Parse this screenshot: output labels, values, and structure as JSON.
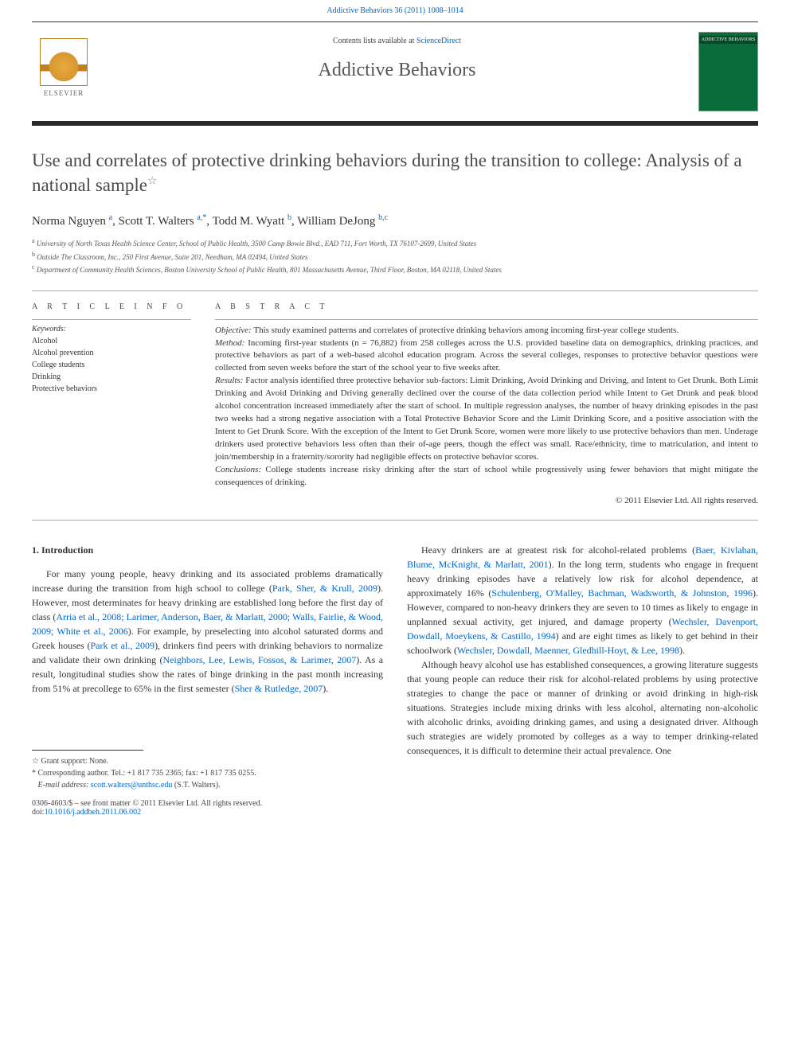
{
  "header": {
    "journal_ref": "Addictive Behaviors 36 (2011) 1008–1014",
    "contents_prefix": "Contents lists available at ",
    "contents_link": "ScienceDirect",
    "journal_name": "Addictive Behaviors",
    "cover_label": "ADDICTIVE BEHAVIORS",
    "publisher": "ELSEVIER"
  },
  "title": "Use and correlates of protective drinking behaviors during the transition to college: Analysis of a national sample",
  "authors_html": "Norma Nguyen <sup>a</sup>, Scott T. Walters <sup>a,*</sup>, Todd M. Wyatt <sup>b</sup>, William DeJong <sup>b,c</sup>",
  "authors": [
    {
      "name": "Norma Nguyen",
      "aff": "a"
    },
    {
      "name": "Scott T. Walters",
      "aff": "a,",
      "corr": "*"
    },
    {
      "name": "Todd M. Wyatt",
      "aff": "b"
    },
    {
      "name": "William DeJong",
      "aff": "b,c"
    }
  ],
  "affiliations": [
    {
      "key": "a",
      "text": "University of North Texas Health Science Center, School of Public Health, 3500 Camp Bowie Blvd., EAD 711, Fort Worth, TX 76107-2699, United States"
    },
    {
      "key": "b",
      "text": "Outside The Classroom, Inc., 250 First Avenue, Suite 201, Needham, MA 02494, United States"
    },
    {
      "key": "c",
      "text": "Department of Community Health Sciences, Boston University School of Public Health, 801 Massachusetts Avenue, Third Floor, Boston, MA 02118, United States"
    }
  ],
  "article_info": {
    "heading": "A R T I C L E   I N F O",
    "keywords_label": "Keywords:",
    "keywords": [
      "Alcohol",
      "Alcohol prevention",
      "College students",
      "Drinking",
      "Protective behaviors"
    ]
  },
  "abstract": {
    "heading": "A B S T R A C T",
    "objective_label": "Objective:",
    "objective": "This study examined patterns and correlates of protective drinking behaviors among incoming first-year college students.",
    "method_label": "Method:",
    "method": "Incoming first-year students (n = 76,882) from 258 colleges across the U.S. provided baseline data on demographics, drinking practices, and protective behaviors as part of a web-based alcohol education program. Across the several colleges, responses to protective behavior questions were collected from seven weeks before the start of the school year to five weeks after.",
    "results_label": "Results:",
    "results": "Factor analysis identified three protective behavior sub-factors: Limit Drinking, Avoid Drinking and Driving, and Intent to Get Drunk. Both Limit Drinking and Avoid Drinking and Driving generally declined over the course of the data collection period while Intent to Get Drunk and peak blood alcohol concentration increased immediately after the start of school. In multiple regression analyses, the number of heavy drinking episodes in the past two weeks had a strong negative association with a Total Protective Behavior Score and the Limit Drinking Score, and a positive association with the Intent to Get Drunk Score. With the exception of the Intent to Get Drunk Score, women were more likely to use protective behaviors than men. Underage drinkers used protective behaviors less often than their of-age peers, though the effect was small. Race/ethnicity, time to matriculation, and intent to join/membership in a fraternity/sorority had negligible effects on protective behavior scores.",
    "conclusions_label": "Conclusions:",
    "conclusions": "College students increase risky drinking after the start of school while progressively using fewer behaviors that might mitigate the consequences of drinking.",
    "copyright": "© 2011 Elsevier Ltd. All rights reserved."
  },
  "body": {
    "heading": "1. Introduction",
    "left": {
      "p1a": "For many young people, heavy drinking and its associated problems dramatically increase during the transition from high school to college (",
      "r1": "Park, Sher, & Krull, 2009",
      "p1b": "). However, most determinates for heavy drinking are established long before the first day of class (",
      "r2": "Arria et al., 2008; Larimer, Anderson, Baer, & Marlatt, 2000; Walls, Fairlie, & Wood, 2009; White et al., 2006",
      "p1c": "). For example, by preselecting into alcohol saturated dorms and Greek houses (",
      "r3": "Park et al., 2009",
      "p1d": "), drinkers find peers with drinking behaviors to normalize and validate their own drinking (",
      "r4": "Neighbors, Lee, Lewis, Fossos, & Larimer, 2007",
      "p1e": "). As a result, longitudinal studies show the rates of binge drinking in the past month increasing from 51% at precollege to 65% in the first semester (",
      "r5": "Sher & Rutledge, 2007",
      "p1f": ")."
    },
    "right": {
      "p1a": "Heavy drinkers are at greatest risk for alcohol-related problems (",
      "r1": "Baer, Kivlahan, Blume, McKnight, & Marlatt, 2001",
      "p1b": "). In the long term, students who engage in frequent heavy drinking episodes have a relatively low risk for alcohol dependence, at approximately 16% (",
      "r2": "Schulenberg, O'Malley, Bachman, Wadsworth, & Johnston, 1996",
      "p1c": "). However, compared to non-heavy drinkers they are seven to 10 times as likely to engage in unplanned sexual activity, get injured, and damage property (",
      "r3": "Wechsler, Davenport, Dowdall, Moeykens, & Castillo, 1994",
      "p1d": ") and are eight times as likely to get behind in their schoolwork (",
      "r4": "Wechsler, Dowdall, Maenner, Gledhill-Hoyt, & Lee, 1998",
      "p1e": ").",
      "p2": "Although heavy alcohol use has established consequences, a growing literature suggests that young people can reduce their risk for alcohol-related problems by using protective strategies to change the pace or manner of drinking or avoid drinking in high-risk situations. Strategies include mixing drinks with less alcohol, alternating non-alcoholic with alcoholic drinks, avoiding drinking games, and using a designated driver. Although such strategies are widely promoted by colleges as a way to temper drinking-related consequences, it is difficult to determine their actual prevalence. One"
    }
  },
  "footnotes": {
    "grant": "Grant support: None.",
    "corr": "Corresponding author. Tel.: +1 817 735 2365; fax: +1 817 735 0255.",
    "email_label": "E-mail address:",
    "email": "scott.walters@unthsc.edu",
    "email_suffix": "(S.T. Walters)."
  },
  "footer": {
    "issn": "0306-4603/$ – see front matter © 2011 Elsevier Ltd. All rights reserved.",
    "doi_label": "doi:",
    "doi": "10.1016/j.addbeh.2011.06.002"
  },
  "colors": {
    "link": "#0066cc",
    "text": "#333333",
    "heading": "#4a4a4a",
    "cover_bg": "#0a6b3a"
  }
}
